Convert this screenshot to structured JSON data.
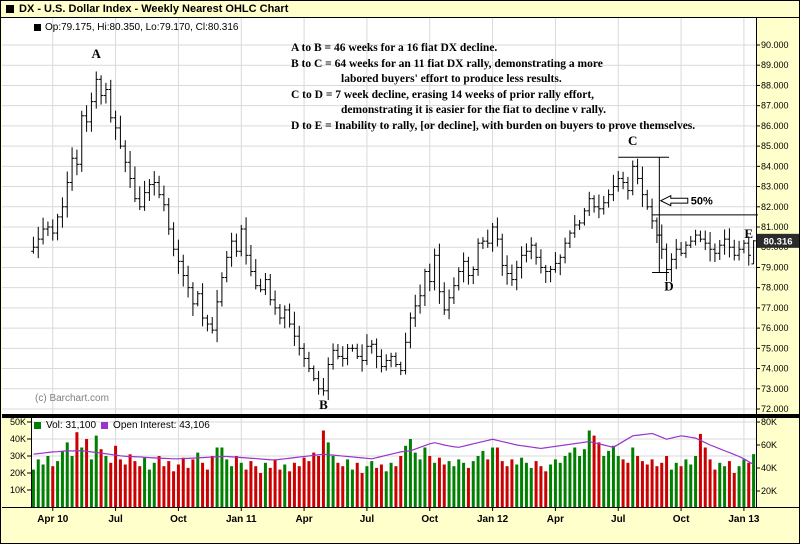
{
  "window": {
    "title": "DX - U.S. Dollar Index - Weekly Nearest OHLC Chart"
  },
  "quote": {
    "label": "Op:79.175, Hi:80.350, Lo:79.170, Cl:80.316",
    "open": 79.175,
    "high": 80.35,
    "low": 79.17,
    "close": 80.316,
    "tag": "80.316"
  },
  "copyright": "(c) Barchart.com",
  "annotation_lines": [
    {
      "text": "A to B = 46 weeks for a 16 fiat DX decline.",
      "indent": false
    },
    {
      "text": "B to C = 64 weeks for an 11 fiat DX rally, demonstrating a more",
      "indent": false
    },
    {
      "text": "labored buyers' effort to produce less results.",
      "indent": true
    },
    {
      "text": "C to D = 7 week decline, erasing 14 weeks of prior rally effort,",
      "indent": false
    },
    {
      "text": "demonstrating it is easier for the fiat to decline v rally.",
      "indent": true
    },
    {
      "text": "D to E = Inability to rally, [or decline], with burden on buyers to prove themselves.",
      "indent": false
    }
  ],
  "legend_volume": {
    "vol_label": "Vol: 31,100",
    "oi_label": "Open Interest: 43,106"
  },
  "colors": {
    "up": "#008000",
    "down": "#cc0000",
    "bar": "#000000",
    "open_interest": "#9933cc",
    "grid": "#d9d9d9",
    "frame_bg": "#ffffcc",
    "tag_bg": "#2b2b2b",
    "tag_text": "#ffffff"
  },
  "chart_data": {
    "type": "ohlc+volume+line",
    "title": "DX - U.S. Dollar Index - Weekly Nearest OHLC Chart",
    "x_axis": {
      "weeks_total": 150,
      "ticks": [
        {
          "label": "Apr 10",
          "week": 4
        },
        {
          "label": "Jul",
          "week": 17
        },
        {
          "label": "Oct",
          "week": 30
        },
        {
          "label": "Jan 11",
          "week": 43
        },
        {
          "label": "Apr",
          "week": 56
        },
        {
          "label": "Jul",
          "week": 69
        },
        {
          "label": "Oct",
          "week": 82
        },
        {
          "label": "Jan 12",
          "week": 95
        },
        {
          "label": "Apr",
          "week": 108
        },
        {
          "label": "Jul",
          "week": 121
        },
        {
          "label": "Oct",
          "week": 134
        },
        {
          "label": "Jan 13",
          "week": 147
        }
      ]
    },
    "y_axis_price": {
      "min": 72,
      "max": 90,
      "labels": [
        {
          "text": "90.000",
          "value": 90
        },
        {
          "text": "89.000",
          "value": 89
        },
        {
          "text": "88.000",
          "value": 88
        },
        {
          "text": "87.000",
          "value": 87
        },
        {
          "text": "86.000",
          "value": 86
        },
        {
          "text": "85.000",
          "value": 85
        },
        {
          "text": "84.000",
          "value": 84
        },
        {
          "text": "83.000",
          "value": 83
        },
        {
          "text": "82.000",
          "value": 82
        },
        {
          "text": "81.000",
          "value": 81
        },
        {
          "text": "80.000",
          "value": 80
        },
        {
          "text": "79.000",
          "value": 79
        },
        {
          "text": "78.000",
          "value": 78
        },
        {
          "text": "77.000",
          "value": 77
        },
        {
          "text": "76.000",
          "value": 76
        },
        {
          "text": "75.000",
          "value": 75
        },
        {
          "text": "74.000",
          "value": 74
        },
        {
          "text": "73.000",
          "value": 73
        },
        {
          "text": "72.000",
          "value": 72
        }
      ]
    },
    "price": {
      "name": "DX weekly close (estimated from chart)",
      "last_bar": {
        "open": 79.175,
        "high": 80.35,
        "low": 79.17,
        "close": 80.316
      },
      "closes": [
        80.0,
        80.4,
        80.9,
        81.0,
        80.7,
        81.5,
        82.0,
        83.2,
        84.4,
        84.1,
        86.5,
        86.2,
        87.2,
        88.3,
        87.5,
        87.8,
        86.4,
        85.9,
        85.0,
        84.2,
        83.4,
        82.4,
        82.0,
        82.7,
        83.1,
        83.2,
        82.6,
        82.1,
        80.9,
        79.9,
        79.3,
        78.6,
        78.0,
        77.2,
        77.7,
        76.5,
        76.2,
        75.9,
        77.3,
        78.5,
        79.5,
        80.3,
        79.8,
        80.9,
        79.6,
        78.8,
        78.1,
        77.9,
        78.4,
        77.4,
        77.0,
        76.5,
        76.9,
        76.2,
        75.6,
        75.0,
        74.5,
        74.0,
        73.5,
        73.0,
        72.9,
        74.2,
        74.9,
        74.6,
        74.5,
        75.0,
        75.0,
        74.6,
        74.4,
        75.1,
        75.2,
        74.6,
        74.1,
        74.4,
        74.6,
        74.2,
        73.9,
        75.3,
        76.5,
        77.1,
        77.6,
        78.8,
        78.3,
        79.6,
        77.8,
        76.9,
        77.5,
        78.1,
        78.8,
        79.3,
        78.6,
        78.9,
        80.2,
        80.3,
        80.2,
        81.0,
        80.4,
        79.1,
        78.7,
        78.4,
        79.0,
        79.6,
        79.8,
        80.1,
        79.5,
        79.0,
        78.8,
        78.9,
        79.2,
        79.5,
        80.2,
        80.7,
        81.1,
        81.2,
        81.8,
        82.4,
        82.0,
        81.9,
        82.2,
        82.6,
        83.0,
        83.4,
        83.2,
        82.8,
        84.0,
        83.4,
        82.6,
        82.0,
        81.3,
        80.6,
        79.9,
        78.9,
        79.4,
        79.9,
        79.7,
        80.1,
        80.3,
        80.6,
        80.4,
        80.2,
        79.9,
        79.7,
        80.1,
        80.4,
        80.0,
        79.6,
        79.9,
        80.2,
        79.6,
        80.3
      ]
    },
    "volume": {
      "name": "Volume",
      "unit": "K",
      "last_value": 31.1,
      "left_axis": [
        {
          "text": "50K",
          "value": 50
        },
        {
          "text": "40K",
          "value": 40
        },
        {
          "text": "30K",
          "value": 30
        },
        {
          "text": "20K",
          "value": 20
        },
        {
          "text": "10K",
          "value": 10
        }
      ],
      "values_k": [
        22,
        28,
        25,
        30,
        24,
        27,
        33,
        38,
        30,
        44,
        35,
        40,
        28,
        42,
        34,
        30,
        26,
        36,
        28,
        25,
        31,
        27,
        24,
        29,
        22,
        26,
        30,
        24,
        27,
        21,
        25,
        29,
        23,
        28,
        32,
        26,
        22,
        30,
        35,
        35,
        28,
        24,
        30,
        26,
        22,
        27,
        24,
        20,
        26,
        23,
        28,
        22,
        25,
        21,
        26,
        24,
        29,
        27,
        32,
        30,
        45,
        38,
        30,
        26,
        24,
        28,
        22,
        26,
        20,
        24,
        27,
        23,
        25,
        21,
        26,
        24,
        30,
        36,
        40,
        32,
        28,
        35,
        30,
        26,
        29,
        25,
        27,
        24,
        28,
        26,
        23,
        27,
        30,
        33,
        28,
        35,
        35,
        27,
        24,
        28,
        25,
        29,
        26,
        23,
        27,
        24,
        21,
        25,
        28,
        26,
        30,
        32,
        35,
        30,
        34,
        45,
        42,
        38,
        30,
        33,
        36,
        30,
        28,
        26,
        35,
        30,
        27,
        25,
        28,
        24,
        26,
        30,
        22,
        26,
        24,
        28,
        25,
        30,
        43,
        35,
        28,
        22,
        26,
        24,
        27,
        20,
        24,
        28,
        26,
        31.1
      ]
    },
    "open_interest": {
      "name": "Open Interest",
      "unit": "K",
      "last_value": 43.106,
      "right_axis": [
        {
          "text": "80K",
          "value": 80
        },
        {
          "text": "60K",
          "value": 60
        },
        {
          "text": "40K",
          "value": 40
        },
        {
          "text": "20K",
          "value": 20
        }
      ],
      "values_k": [
        52,
        52.5,
        53,
        53.5,
        54,
        54.2,
        54.6,
        55,
        54.8,
        55,
        55,
        54.5,
        54,
        53.5,
        53,
        52.4,
        51.8,
        51.2,
        50.6,
        50.2,
        50,
        49.8,
        49.6,
        49.3,
        49,
        48.8,
        48.6,
        48.4,
        48.2,
        48,
        48,
        48.2,
        48.4,
        48.6,
        48.8,
        49,
        49.3,
        49.5,
        49.8,
        50,
        50,
        49.7,
        49.4,
        49.1,
        48.8,
        48.5,
        48.2,
        47.8,
        47.5,
        47.2,
        47,
        47.5,
        48,
        48.5,
        49,
        49.5,
        50,
        50.5,
        51,
        51.5,
        52,
        51.6,
        51.2,
        50.8,
        50.4,
        50,
        49.6,
        49.2,
        48.8,
        48.4,
        48,
        49,
        50,
        51,
        52,
        53,
        54,
        54.5,
        55,
        56.5,
        58,
        59.5,
        61,
        62,
        61,
        60,
        59.2,
        58.5,
        58,
        59,
        60,
        61,
        62,
        63,
        64,
        65,
        64,
        63,
        62,
        61,
        60,
        59.4,
        58.8,
        58.2,
        57.6,
        57,
        57.6,
        58.2,
        58.8,
        59.4,
        60,
        60.6,
        61.2,
        61.8,
        62.4,
        63,
        62,
        61,
        60,
        59,
        58,
        60.5,
        63,
        65.5,
        68,
        68.5,
        69,
        69.5,
        70,
        68.4,
        66.7,
        65,
        66,
        67,
        68,
        67.4,
        66.7,
        66,
        64,
        62,
        60,
        58.4,
        56.7,
        55,
        53.4,
        51.7,
        50,
        48,
        45.5,
        43.1
      ]
    },
    "letters": [
      {
        "id": "A",
        "week": 13,
        "price": 89.35
      },
      {
        "id": "B",
        "week": 60,
        "price": 72.0
      },
      {
        "id": "C",
        "week": 124,
        "price": 85.05
      },
      {
        "id": "D",
        "week": 131.5,
        "price": 77.85
      },
      {
        "id": "E",
        "week": 148,
        "price": 80.45
      }
    ],
    "retracement": {
      "label": "50%",
      "high": 84.45,
      "low": 78.75,
      "mid": 81.6,
      "top_from": 121,
      "top_to": 131.5,
      "bottom_from": 128,
      "bottom_to": 131.5,
      "vline_week": 129.5,
      "mid_from": 128,
      "arrow_tip_week": 129.8,
      "arrow_price": 82.3,
      "label_week": 136,
      "label_price": 82.3
    }
  }
}
